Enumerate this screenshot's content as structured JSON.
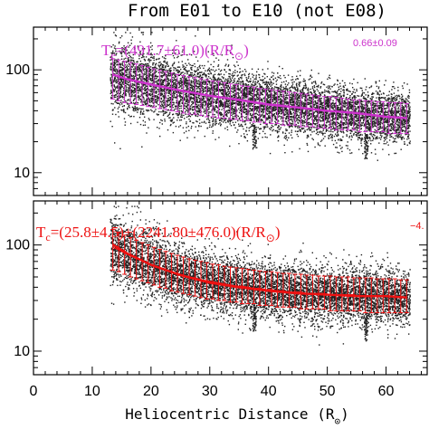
{
  "chart_data": {
    "type": "scatter",
    "title": "From E01 to E10 (not E08)",
    "xlabel": "Heliocentric Distance (R",
    "xlabel_sub": "⊙",
    "xlabel_close": ")",
    "xlim": [
      0,
      67
    ],
    "x_ticks": [
      0,
      10,
      20,
      30,
      40,
      50,
      60
    ],
    "x_tick_labels": [
      "0",
      "10",
      "20",
      "30",
      "40",
      "50",
      "60"
    ],
    "y_scale": "log",
    "colors": {
      "top": "#cc33cc",
      "bottom": "#ee1111",
      "points": "#222222"
    },
    "panels": [
      {
        "name": "top",
        "ylim": [
          6,
          260
        ],
        "y_ticks": [
          10,
          100
        ],
        "y_tick_labels": [
          "10",
          "100"
        ],
        "formula": {
          "lhs": "T",
          "lhs_sub": "e",
          "rhs": "=(491.7±61.0)(R/R",
          "rhs_sub": "⊙",
          "rhs_close": ")",
          "exponent": "0.66±0.09"
        },
        "fit": {
          "x": [
            13.5,
            16,
            20,
            25,
            30,
            35,
            40,
            45,
            50,
            55,
            60,
            63.5
          ],
          "y": [
            90,
            81,
            72,
            63,
            56,
            51,
            46,
            43,
            40,
            38,
            35,
            34
          ]
        },
        "bins": {
          "x": [
            13.5,
            14.5,
            15.5,
            16.5,
            17.5,
            18.5,
            19.5,
            20.5,
            21.5,
            22.5,
            23.5,
            24.5,
            25.5,
            26.5,
            27.5,
            28.5,
            29.5,
            30.5,
            31.5,
            32.5,
            33.5,
            34.5,
            35.5,
            36.5,
            37.5,
            38.5,
            39.5,
            40.5,
            41.5,
            42.5,
            43.5,
            44.5,
            45.5,
            46.5,
            47.5,
            48.5,
            49.5,
            50.5,
            51.5,
            52.5,
            53.5,
            54.5,
            55.5,
            56.5,
            57.5,
            58.5,
            59.5,
            60.5,
            61.5,
            62.5,
            63.5
          ],
          "mean": [
            90,
            86,
            83,
            80,
            78,
            76,
            74,
            72,
            70,
            68,
            66,
            64,
            63,
            61,
            60,
            58,
            57,
            56,
            55,
            54,
            53,
            52,
            51,
            50,
            49,
            48,
            47,
            46,
            46,
            45,
            44,
            44,
            43,
            42,
            42,
            41,
            40,
            40,
            39,
            39,
            38,
            38,
            37,
            37,
            36,
            36,
            35,
            35,
            35,
            34,
            34
          ],
          "low": [
            52,
            50,
            48,
            47,
            46,
            45,
            44,
            43,
            42,
            41,
            40,
            39,
            38,
            37,
            37,
            36,
            35,
            35,
            34,
            34,
            33,
            33,
            32,
            32,
            31,
            31,
            30,
            30,
            30,
            29,
            29,
            29,
            28,
            28,
            28,
            27,
            27,
            27,
            26,
            26,
            26,
            26,
            25,
            25,
            25,
            25,
            25,
            24,
            24,
            24,
            24
          ],
          "high": [
            128,
            125,
            121,
            118,
            114,
            110,
            106,
            102,
            99,
            96,
            93,
            90,
            88,
            86,
            84,
            82,
            80,
            78,
            77,
            75,
            73,
            72,
            70,
            69,
            68,
            66,
            65,
            64,
            63,
            62,
            61,
            60,
            59,
            58,
            57,
            56,
            55,
            55,
            54,
            53,
            52,
            51,
            51,
            50,
            50,
            49,
            49,
            48,
            48,
            48,
            47
          ]
        }
      },
      {
        "name": "bottom",
        "ylim": [
          6,
          260
        ],
        "y_ticks": [
          10,
          100
        ],
        "y_tick_labels": [
          "10",
          "100"
        ],
        "formula": {
          "lhs": "T",
          "lhs_sub": "c",
          "rhs": "=(25.8±4.5)+(2241.80±476.0)(R/R",
          "rhs_sub": "⊙",
          "rhs_close": ")",
          "exponent": "−4."
        },
        "fit": {
          "x": [
            13.5,
            16,
            20,
            25,
            30,
            35,
            40,
            45,
            50,
            55,
            60,
            63.5
          ],
          "y": [
            101,
            83,
            65,
            52,
            44,
            40,
            37,
            35,
            34,
            33,
            33,
            32
          ]
        },
        "bins": {
          "x": [
            13.5,
            14.5,
            15.5,
            16.5,
            17.5,
            18.5,
            19.5,
            20.5,
            21.5,
            22.5,
            23.5,
            24.5,
            25.5,
            26.5,
            27.5,
            28.5,
            29.5,
            30.5,
            31.5,
            32.5,
            33.5,
            34.5,
            35.5,
            36.5,
            37.5,
            38.5,
            39.5,
            40.5,
            41.5,
            42.5,
            43.5,
            44.5,
            45.5,
            46.5,
            47.5,
            48.5,
            49.5,
            50.5,
            51.5,
            52.5,
            53.5,
            54.5,
            55.5,
            56.5,
            57.5,
            58.5,
            59.5,
            60.5,
            61.5,
            62.5,
            63.5
          ],
          "mean": [
            95,
            90,
            84,
            79,
            75,
            71,
            67,
            64,
            61,
            58,
            56,
            54,
            52,
            50,
            49,
            47,
            46,
            45,
            44,
            43,
            42,
            41,
            41,
            40,
            39,
            39,
            38,
            38,
            37,
            37,
            36,
            36,
            36,
            35,
            35,
            35,
            35,
            34,
            34,
            34,
            34,
            34,
            33,
            33,
            33,
            33,
            33,
            33,
            32,
            32,
            32
          ],
          "low": [
            58,
            56,
            53,
            50,
            48,
            46,
            44,
            42,
            40,
            39,
            37,
            36,
            35,
            34,
            33,
            32,
            31,
            31,
            30,
            30,
            29,
            29,
            28,
            28,
            28,
            27,
            27,
            27,
            26,
            26,
            26,
            26,
            25,
            25,
            25,
            25,
            25,
            24,
            24,
            24,
            24,
            24,
            24,
            23,
            23,
            23,
            23,
            23,
            23,
            23,
            23
          ],
          "high": [
            140,
            132,
            124,
            117,
            111,
            105,
            100,
            95,
            91,
            87,
            83,
            80,
            77,
            74,
            72,
            70,
            68,
            66,
            65,
            63,
            62,
            61,
            60,
            59,
            58,
            57,
            56,
            56,
            55,
            54,
            54,
            53,
            53,
            52,
            52,
            51,
            51,
            51,
            50,
            50,
            50,
            49,
            49,
            49,
            49,
            48,
            48,
            48,
            48,
            47,
            47
          ]
        }
      }
    ]
  }
}
